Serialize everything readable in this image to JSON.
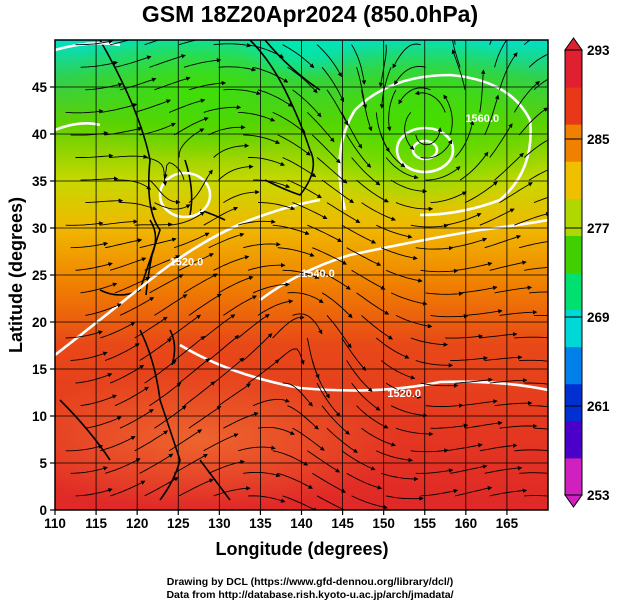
{
  "chart_data": {
    "type": "heatmap",
    "title": "GSM 18Z20Apr2024 (850.0hPa)",
    "xlabel": "Longitude (degrees)",
    "ylabel": "Latitude (degrees)",
    "xlim": [
      110,
      170
    ],
    "ylim": [
      0,
      50
    ],
    "x_ticks": [
      "110",
      "115",
      "120",
      "125",
      "130",
      "135",
      "140",
      "145",
      "150",
      "155",
      "160",
      "165"
    ],
    "y_ticks": [
      "0",
      "5",
      "10",
      "15",
      "20",
      "25",
      "30",
      "35",
      "40",
      "45"
    ],
    "colorbar": {
      "range": [
        253,
        293
      ],
      "ticks": [
        "253",
        "261",
        "269",
        "277",
        "285",
        "293"
      ],
      "colors": [
        "#d020c0",
        "#4a00c8",
        "#0030d0",
        "#0080e8",
        "#00d8d8",
        "#00e070",
        "#40d000",
        "#b0d800",
        "#f0c000",
        "#f08000",
        "#e83818",
        "#e02030"
      ]
    },
    "contour_labels": [
      {
        "text": "1560.0",
        "lon": 162,
        "lat": 41.3
      },
      {
        "text": "1540.0",
        "lon": 142,
        "lat": 24.8
      },
      {
        "text": "1520.0",
        "lon": 152.5,
        "lat": 12
      },
      {
        "text": "1520.0",
        "lon": 126,
        "lat": 26
      }
    ],
    "grid": true
  },
  "credits": {
    "line1": "Drawing by DCL (https://www.gfd-dennou.org/library/dcl/)",
    "line2": "Data from http://database.rish.kyoto-u.ac.jp/arch/jmadata/"
  }
}
